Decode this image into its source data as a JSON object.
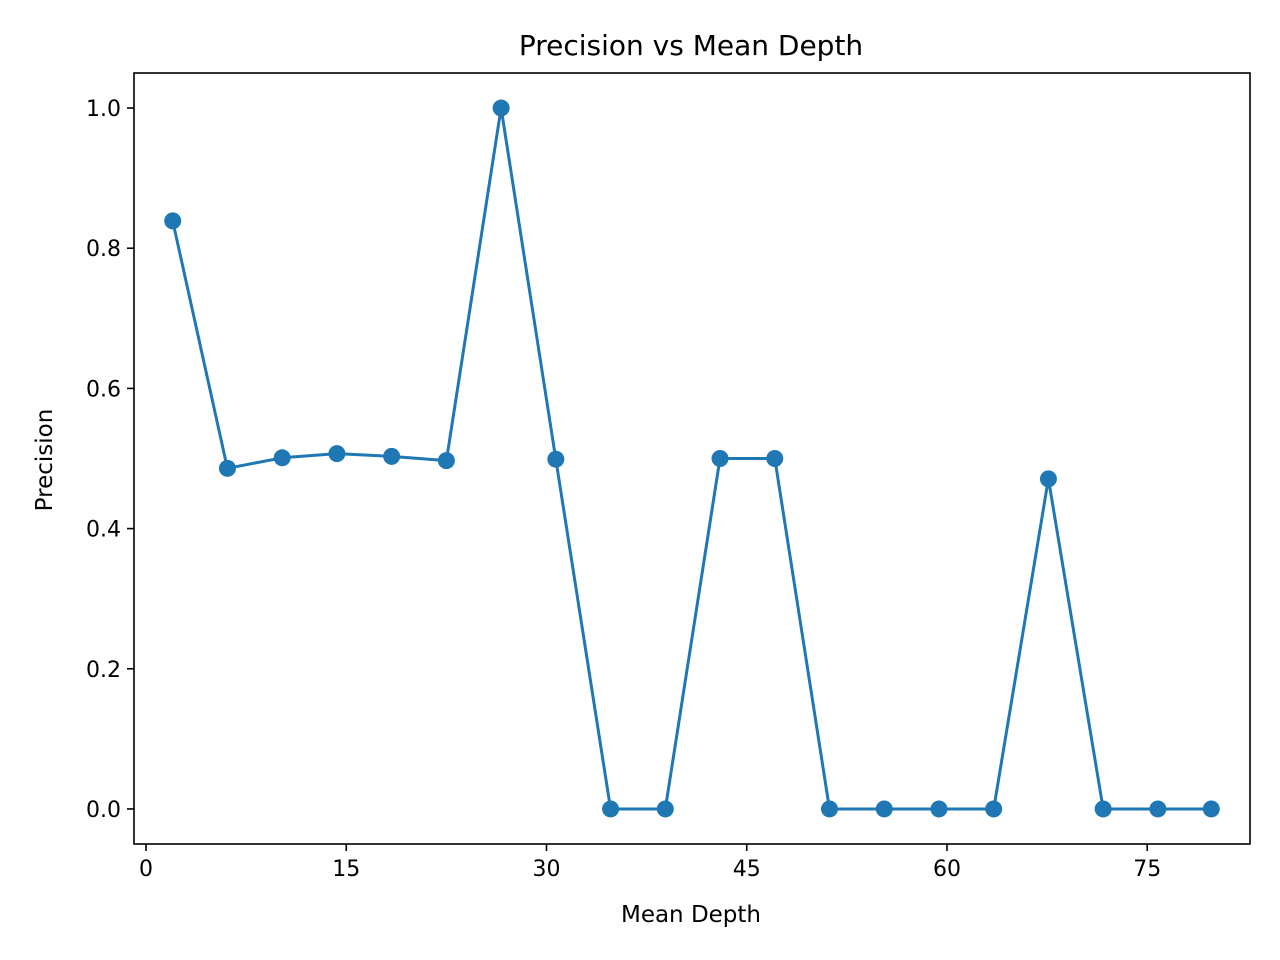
{
  "chart_data": {
    "type": "line",
    "title": "Precision vs Mean Depth",
    "xlabel": "Mean Depth",
    "ylabel": "Precision",
    "xlim": [
      -0.9,
      82.7
    ],
    "ylim": [
      -0.05,
      1.05
    ],
    "xticks": [
      0,
      15,
      30,
      45,
      60,
      75
    ],
    "xtick_labels": [
      "0",
      "15",
      "30",
      "45",
      "60",
      "75"
    ],
    "yticks": [
      0.0,
      0.2,
      0.4,
      0.6,
      0.8,
      1.0
    ],
    "ytick_labels": [
      "0.0",
      "0.2",
      "0.4",
      "0.6",
      "0.8",
      "1.0"
    ],
    "grid": false,
    "series": [
      {
        "color": "#1f77b4",
        "marker": "circle",
        "x": [
          2.0,
          6.1,
          10.2,
          14.3,
          18.4,
          22.5,
          26.6,
          30.7,
          34.8,
          38.9,
          43.0,
          47.1,
          51.2,
          55.3,
          59.4,
          63.5,
          67.6,
          71.7,
          75.8,
          79.8
        ],
        "y": [
          0.839,
          0.486,
          0.501,
          0.507,
          0.503,
          0.497,
          1.0,
          0.499,
          0.0,
          0.0,
          0.5,
          0.5,
          0.0,
          0.0,
          0.0,
          0.0,
          0.471,
          0.0,
          0.0,
          0.0
        ]
      }
    ]
  }
}
